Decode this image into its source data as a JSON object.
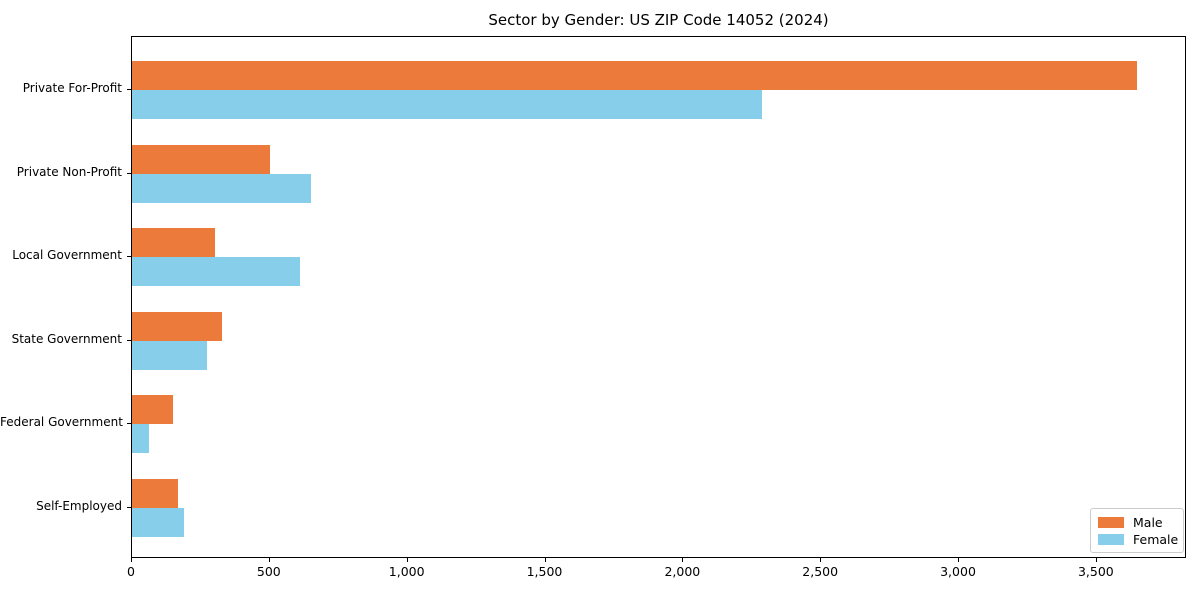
{
  "title": "Sector by Gender: US ZIP Code 14052 (2024)",
  "chart_data": {
    "type": "bar",
    "orientation": "horizontal",
    "title": "Sector by Gender: US ZIP Code 14052 (2024)",
    "categories": [
      "Private For-Profit",
      "Private Non-Profit",
      "Local Government",
      "State Government",
      "Federal Government",
      "Self-Employed"
    ],
    "series": [
      {
        "name": "Male",
        "color": "#eb7a3b",
        "values": [
          3645,
          502,
          300,
          327,
          150,
          167
        ]
      },
      {
        "name": "Female",
        "color": "#87ceeb",
        "values": [
          2286,
          651,
          608,
          271,
          63,
          187
        ]
      }
    ],
    "xlabel": "",
    "ylabel": "",
    "xlim": [
      0,
      3827
    ],
    "xticks": [
      {
        "value": 0,
        "label": "0"
      },
      {
        "value": 500,
        "label": "500"
      },
      {
        "value": 1000,
        "label": "1,000"
      },
      {
        "value": 1500,
        "label": "1,500"
      },
      {
        "value": 2000,
        "label": "2,000"
      },
      {
        "value": 2500,
        "label": "2,500"
      },
      {
        "value": 3000,
        "label": "3,000"
      },
      {
        "value": 3500,
        "label": "3,500"
      }
    ],
    "grid": false,
    "legend": {
      "position": "lower right",
      "entries": [
        "Male",
        "Female"
      ]
    },
    "background_color": "#ffffff",
    "spine_color": "#000000"
  }
}
